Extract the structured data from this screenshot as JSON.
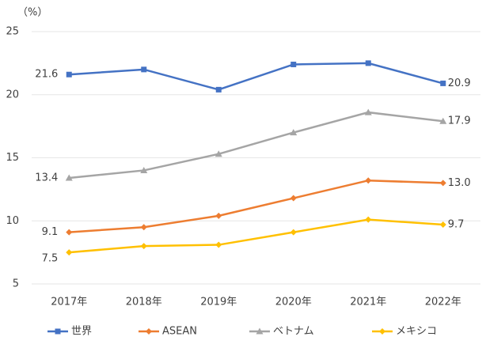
{
  "chart_data": {
    "type": "line",
    "y_label": "（%）",
    "categories": [
      "2017年",
      "2018年",
      "2019年",
      "2020年",
      "2021年",
      "2022年"
    ],
    "series": [
      {
        "name": "世界",
        "color": "#4472c4",
        "marker": "square",
        "values": [
          21.6,
          22.0,
          20.4,
          22.4,
          22.5,
          20.9
        ],
        "value_labels": [
          "21.6",
          null,
          null,
          null,
          null,
          "20.9"
        ]
      },
      {
        "name": "ASEAN",
        "color": "#ed7d31",
        "marker": "diamond",
        "values": [
          9.1,
          9.5,
          10.4,
          11.8,
          13.2,
          13.0
        ],
        "value_labels": [
          "9.1",
          null,
          null,
          null,
          null,
          "13.0"
        ]
      },
      {
        "name": "ベトナム",
        "color": "#a5a5a5",
        "marker": "triangle",
        "values": [
          13.4,
          14.0,
          15.3,
          17.0,
          18.6,
          17.9
        ],
        "value_labels": [
          "13.4",
          null,
          null,
          null,
          null,
          "17.9"
        ]
      },
      {
        "name": "メキシコ",
        "color": "#ffc000",
        "marker": "diamond",
        "values": [
          7.5,
          8.0,
          8.1,
          9.1,
          10.1,
          9.7
        ],
        "value_labels": [
          "7.5",
          null,
          null,
          null,
          null,
          "9.7"
        ]
      }
    ],
    "ylim": [
      5,
      25
    ],
    "yticks": [
      5,
      10,
      15,
      20,
      25
    ],
    "grid": true
  }
}
